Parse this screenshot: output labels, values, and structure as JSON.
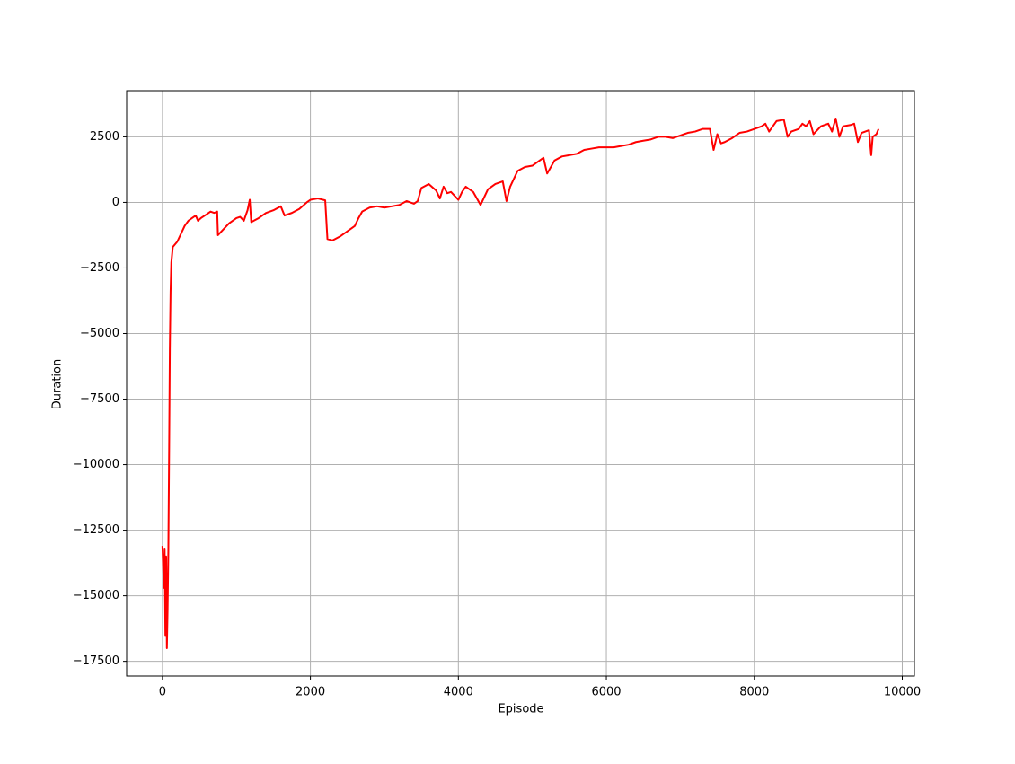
{
  "chart_data": {
    "type": "line",
    "x_label": "Episode",
    "y_label": "Duration",
    "xlim": [
      -484,
      10164
    ],
    "ylim": [
      -18060,
      4260
    ],
    "xticks": [
      0,
      2000,
      4000,
      6000,
      8000,
      10000
    ],
    "yticks": [
      {
        "value": -17500,
        "label": "−17500"
      },
      {
        "value": -15000,
        "label": "−15000"
      },
      {
        "value": -12500,
        "label": "−12500"
      },
      {
        "value": -10000,
        "label": "−10000"
      },
      {
        "value": -7500,
        "label": "−7500"
      },
      {
        "value": -5000,
        "label": "−5000"
      },
      {
        "value": -2500,
        "label": "−2500"
      },
      0,
      2500
    ],
    "grid": true,
    "series": [
      {
        "color": "#ff0000",
        "x": [
          0,
          20,
          30,
          40,
          50,
          60,
          70,
          80,
          90,
          100,
          110,
          120,
          140,
          200,
          250,
          300,
          350,
          400,
          450,
          480,
          520,
          600,
          650,
          700,
          740,
          750,
          800,
          900,
          1000,
          1050,
          1100,
          1150,
          1180,
          1200,
          1300,
          1400,
          1500,
          1600,
          1650,
          1750,
          1850,
          1950,
          2000,
          2100,
          2200,
          2230,
          2300,
          2400,
          2500,
          2600,
          2650,
          2700,
          2800,
          2900,
          3000,
          3100,
          3200,
          3300,
          3400,
          3450,
          3500,
          3600,
          3700,
          3750,
          3800,
          3850,
          3900,
          4000,
          4050,
          4100,
          4200,
          4300,
          4400,
          4500,
          4600,
          4650,
          4700,
          4800,
          4900,
          5000,
          5100,
          5150,
          5200,
          5300,
          5400,
          5500,
          5600,
          5700,
          5800,
          5900,
          6000,
          6100,
          6200,
          6300,
          6400,
          6500,
          6600,
          6700,
          6800,
          6900,
          7000,
          7100,
          7200,
          7300,
          7400,
          7450,
          7500,
          7550,
          7600,
          7700,
          7800,
          7900,
          8000,
          8100,
          8150,
          8200,
          8300,
          8400,
          8450,
          8500,
          8600,
          8650,
          8700,
          8750,
          8800,
          8900,
          9000,
          9050,
          9100,
          9150,
          9200,
          9300,
          9350,
          9400,
          9450,
          9500,
          9550,
          9580,
          9600,
          9650,
          9680
        ],
        "values": [
          -13100,
          -14700,
          -13200,
          -16500,
          -13500,
          -17000,
          -15500,
          -13300,
          -9600,
          -5600,
          -3400,
          -2300,
          -1700,
          -1500,
          -1200,
          -900,
          -700,
          -600,
          -500,
          -700,
          -600,
          -450,
          -350,
          -400,
          -350,
          -1250,
          -1100,
          -800,
          -600,
          -550,
          -700,
          -300,
          100,
          -750,
          -600,
          -400,
          -300,
          -150,
          -500,
          -400,
          -250,
          0,
          100,
          150,
          80,
          -1400,
          -1450,
          -1300,
          -1100,
          -900,
          -600,
          -350,
          -200,
          -150,
          -200,
          -150,
          -100,
          50,
          -50,
          50,
          550,
          700,
          450,
          150,
          600,
          350,
          400,
          100,
          400,
          600,
          400,
          -100,
          500,
          700,
          800,
          50,
          600,
          1200,
          1350,
          1400,
          1600,
          1700,
          1100,
          1600,
          1750,
          1800,
          1850,
          2000,
          2050,
          2100,
          2100,
          2100,
          2150,
          2200,
          2300,
          2350,
          2400,
          2500,
          2500,
          2450,
          2550,
          2650,
          2700,
          2800,
          2800,
          2000,
          2600,
          2250,
          2300,
          2450,
          2650,
          2700,
          2800,
          2900,
          3000,
          2700,
          3100,
          3150,
          2500,
          2700,
          2800,
          3000,
          2900,
          3100,
          2600,
          2900,
          3000,
          2700,
          3200,
          2500,
          2900,
          2950,
          3000,
          2300,
          2650,
          2700,
          2750,
          1800,
          2500,
          2600,
          2800
        ]
      }
    ]
  }
}
